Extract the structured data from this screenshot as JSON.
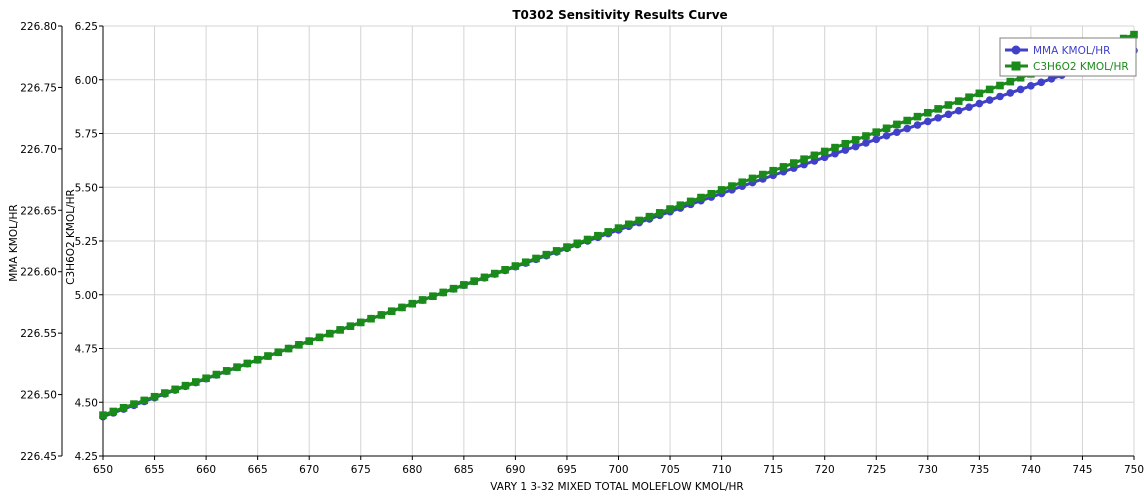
{
  "chart_data": {
    "type": "line",
    "title": "T0302 Sensitivity Results Curve",
    "xlabel": "VARY  1 3-32 MIXED TOTAL MOLEFLOW KMOL/HR",
    "ylabel_left": "MMA KMOL/HR",
    "ylabel_right_inner": "C3H6O2 KMOL/HR",
    "xlim": [
      650,
      750
    ],
    "x_ticks": [
      "650",
      "655",
      "660",
      "665",
      "670",
      "675",
      "680",
      "685",
      "690",
      "695",
      "700",
      "705",
      "710",
      "715",
      "720",
      "725",
      "730",
      "735",
      "740",
      "745",
      "750"
    ],
    "y1lim": [
      226.45,
      226.8
    ],
    "y1_ticks": [
      "226.45",
      "226.50",
      "226.55",
      "226.60",
      "226.65",
      "226.70",
      "226.75",
      "226.80"
    ],
    "y2lim": [
      4.25,
      6.25
    ],
    "y2_ticks": [
      "4.25",
      "4.50",
      "4.75",
      "5.00",
      "5.25",
      "5.50",
      "5.75",
      "6.00",
      "6.25"
    ],
    "grid": true,
    "legend_position": "top-right",
    "series": [
      {
        "name": "MMA KMOL/HR",
        "axis": "y1",
        "marker": "circle",
        "color": "#4040c8",
        "x_start": 650,
        "x_end": 750,
        "x_step": 1,
        "y_start": 226.482,
        "y_end": 226.78,
        "curvature": -0.012
      },
      {
        "name": "C3H6O2 KMOL/HR",
        "axis": "y2",
        "marker": "square",
        "color": "#1a8a1a",
        "x_start": 650,
        "x_end": 750,
        "x_step": 1,
        "y_start": 4.44,
        "y_end": 6.21,
        "curvature": 0.06
      }
    ]
  }
}
